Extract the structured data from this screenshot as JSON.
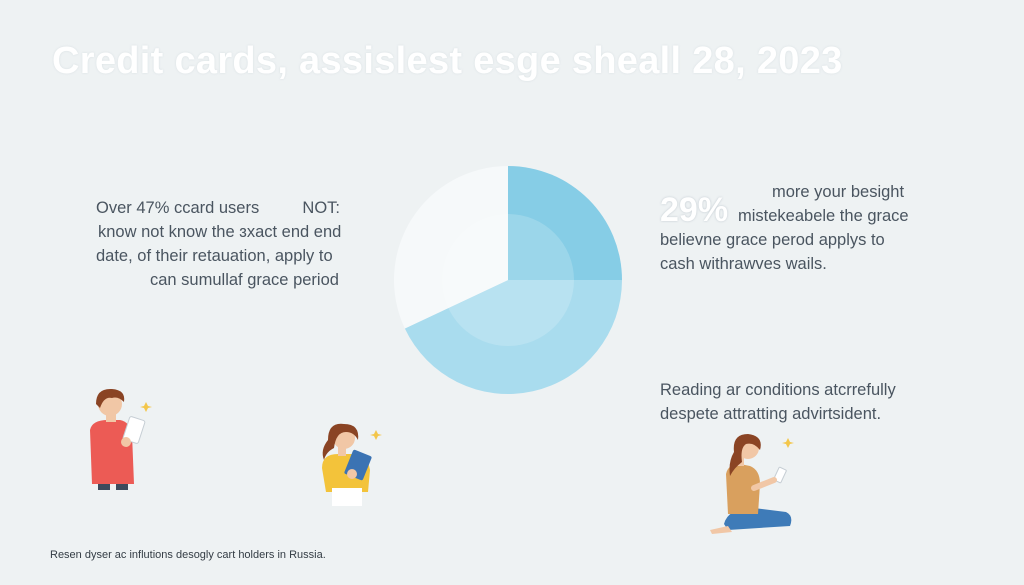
{
  "header": {
    "title": "Credit cards, assislest esge sheall 28, 2023"
  },
  "left_text": {
    "line1_a": "Over 47% ccard users",
    "line1_b": "NOT:",
    "line2": "know not know the ɜxact end end",
    "line3": "date, of their retauation, apply to",
    "line4": "can sumullaf grace period"
  },
  "right_text": {
    "line0": "more your besight",
    "percent": "29%",
    "line1": "mistekeabele the grace",
    "line2": "believne grace perod applys to",
    "line3": "cash withrawves wails."
  },
  "note_text": {
    "line1": "Reading ar conditions atcrrefully",
    "line2": "despete attratting advirtsident."
  },
  "footer": {
    "source": "Resen dyser ac influtions desogly cart holders in Russia."
  },
  "colors": {
    "background": "#eef2f3",
    "slice_dark": "#86cde6",
    "slice_mid": "#a9dcee",
    "slice_light": "#f6f9fa"
  },
  "icons": [
    "person-reading-tablet-icon",
    "girl-reading-book-icon",
    "woman-reading-phone-icon"
  ],
  "chart_data": {
    "type": "pie",
    "title": "",
    "categories": [
      "",
      "",
      ""
    ],
    "values": [
      25,
      43,
      32
    ]
  }
}
